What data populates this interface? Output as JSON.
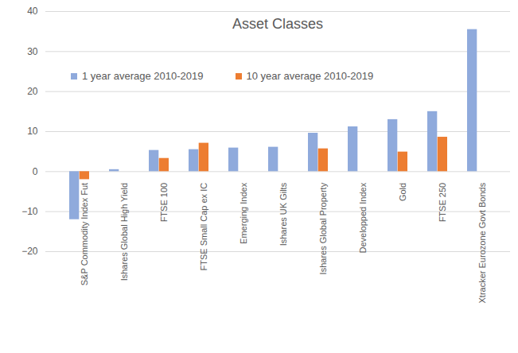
{
  "chart_data": {
    "type": "bar",
    "title": "Asset Classes",
    "categories": [
      "S&P Commodity Index Fut",
      "Ishares Global High Yield",
      "FTSE 100",
      "FTSE Small Cap ex IC",
      "Emerging Index",
      "Ishares UK Gilts",
      "Ishares Global Property",
      "Developped Index",
      "Gold",
      "FTSE 250",
      "Xtracker Eurozone Govt Bonds"
    ],
    "series": [
      {
        "name": "1 year average 2010-2019",
        "color": "#8faadc",
        "values": [
          -12,
          0.5,
          5.3,
          5.5,
          5.9,
          6.1,
          9.6,
          11.2,
          13,
          15,
          35.5
        ]
      },
      {
        "name": "10 year average 2010-2019",
        "color": "#ed7d31",
        "values": [
          -2,
          null,
          3.3,
          7.1,
          null,
          null,
          5.7,
          null,
          4.9,
          8.6,
          null
        ]
      }
    ],
    "ylim": [
      -20,
      40
    ],
    "yticks": [
      -20,
      -10,
      0,
      10,
      20,
      30,
      40
    ],
    "grid": true,
    "legend": "top-left"
  }
}
